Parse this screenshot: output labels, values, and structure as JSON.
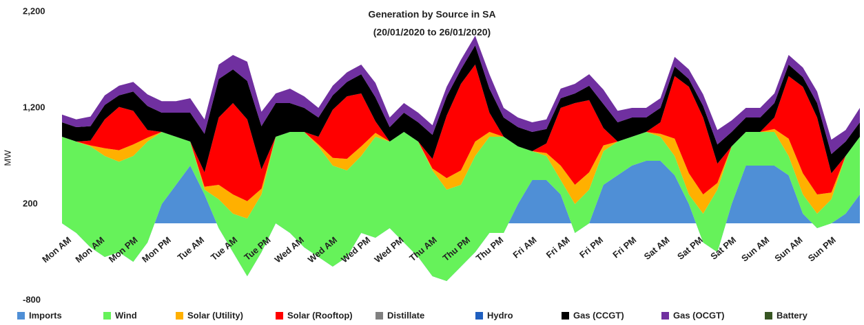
{
  "chart_data": {
    "type": "stacked_area",
    "title": "Generation by Source in SA",
    "subtitle": "(20/01/2020 to 26/01/2020)",
    "y_label": "MW",
    "x": [
      0,
      3,
      6,
      9,
      12,
      15,
      18,
      21,
      24,
      27,
      30,
      33,
      36,
      39,
      42,
      45,
      48,
      51,
      54,
      57,
      60,
      63,
      66,
      69,
      72,
      75,
      78,
      81,
      84,
      87,
      90,
      93,
      96,
      99,
      102,
      105,
      108,
      111,
      114,
      117,
      120,
      123,
      126,
      129,
      132,
      135,
      138,
      141,
      144,
      147,
      150,
      153,
      156,
      159,
      162,
      165,
      168
    ],
    "xlim": [
      0,
      168
    ],
    "xticks": [
      {
        "value": 0,
        "label": "Mon AM"
      },
      {
        "value": 7,
        "label": "Mon AM"
      },
      {
        "value": 14,
        "label": "Mon PM"
      },
      {
        "value": 21,
        "label": "Mon PM"
      },
      {
        "value": 28,
        "label": "Tue AM"
      },
      {
        "value": 35,
        "label": "Tue AM"
      },
      {
        "value": 42,
        "label": "Tue PM"
      },
      {
        "value": 49,
        "label": "Wed AM"
      },
      {
        "value": 56,
        "label": "Wed AM"
      },
      {
        "value": 63,
        "label": "Wed PM"
      },
      {
        "value": 70,
        "label": "Wed PM"
      },
      {
        "value": 77,
        "label": "Thu AM"
      },
      {
        "value": 84,
        "label": "Thu PM"
      },
      {
        "value": 91,
        "label": "Thu PM"
      },
      {
        "value": 98,
        "label": "Fri AM"
      },
      {
        "value": 105,
        "label": "Fri AM"
      },
      {
        "value": 112,
        "label": "Fri PM"
      },
      {
        "value": 119,
        "label": "Fri PM"
      },
      {
        "value": 126,
        "label": "Sat AM"
      },
      {
        "value": 133,
        "label": "Sat PM"
      },
      {
        "value": 140,
        "label": "Sat PM"
      },
      {
        "value": 147,
        "label": "Sun AM"
      },
      {
        "value": 154,
        "label": "Sun AM"
      },
      {
        "value": 161,
        "label": "Sun PM"
      }
    ],
    "ylim": [
      -800,
      2200
    ],
    "yticks": [
      {
        "value": 2200,
        "label": "2,200"
      },
      {
        "value": 1200,
        "label": "1,200"
      },
      200,
      -800
    ],
    "grid": false,
    "legend": "bottom",
    "series": [
      {
        "name": "Imports",
        "color": "#4f8fd6",
        "values": [
          0,
          -100,
          -250,
          -350,
          -300,
          -400,
          -200,
          200,
          400,
          600,
          300,
          -50,
          -300,
          -550,
          -300,
          0,
          -100,
          -250,
          -350,
          -450,
          -350,
          -100,
          -150,
          -50,
          -200,
          -350,
          -550,
          -600,
          -450,
          -300,
          -100,
          -100,
          200,
          450,
          450,
          300,
          -100,
          0,
          400,
          500,
          600,
          650,
          650,
          500,
          200,
          -200,
          -300,
          200,
          600,
          600,
          600,
          500,
          100,
          -50,
          0,
          100,
          300
        ]
      },
      {
        "name": "Wind",
        "color": "#66f25a",
        "values": [
          900,
          950,
          1050,
          1050,
          940,
          1100,
          1050,
          750,
          500,
          250,
          50,
          300,
          400,
          600,
          600,
          900,
          1050,
          1200,
          1150,
          1050,
          900,
          800,
          1050,
          900,
          1150,
          1200,
          1100,
          950,
          850,
          1000,
          1000,
          1000,
          600,
          300,
          250,
          150,
          300,
          350,
          350,
          350,
          300,
          300,
          250,
          200,
          100,
          300,
          650,
          600,
          350,
          350,
          350,
          200,
          200,
          150,
          250,
          600,
          600
        ]
      },
      {
        "name": "Solar (Utility)",
        "color": "#ffb000",
        "values": [
          0,
          0,
          10,
          80,
          120,
          120,
          40,
          0,
          0,
          0,
          30,
          150,
          200,
          180,
          60,
          0,
          0,
          0,
          20,
          80,
          120,
          100,
          40,
          0,
          0,
          0,
          20,
          120,
          150,
          150,
          50,
          0,
          0,
          0,
          30,
          150,
          200,
          180,
          60,
          0,
          0,
          0,
          30,
          180,
          220,
          200,
          70,
          0,
          0,
          0,
          30,
          180,
          220,
          200,
          70,
          0,
          0
        ]
      },
      {
        "name": "Solar (Rooftop)",
        "color": "#ff0000",
        "values": [
          0,
          0,
          50,
          300,
          450,
          350,
          80,
          0,
          0,
          0,
          150,
          700,
          950,
          850,
          200,
          0,
          0,
          0,
          80,
          500,
          650,
          550,
          120,
          0,
          0,
          0,
          100,
          650,
          900,
          800,
          200,
          0,
          0,
          0,
          100,
          600,
          850,
          750,
          180,
          0,
          0,
          0,
          120,
          650,
          900,
          800,
          200,
          0,
          0,
          0,
          120,
          650,
          900,
          800,
          200,
          0,
          0
        ]
      },
      {
        "name": "Distillate",
        "color": "#808080",
        "values": [
          0,
          0,
          0,
          0,
          0,
          0,
          0,
          0,
          0,
          0,
          0,
          0,
          0,
          0,
          0,
          0,
          0,
          0,
          0,
          0,
          0,
          0,
          0,
          0,
          0,
          0,
          0,
          0,
          0,
          0,
          0,
          0,
          0,
          0,
          0,
          0,
          0,
          0,
          0,
          0,
          0,
          0,
          0,
          0,
          0,
          0,
          0,
          0,
          0,
          0,
          0,
          0,
          0,
          0,
          0,
          0,
          0
        ]
      },
      {
        "name": "Hydro",
        "color": "#1f5fbf",
        "values": [
          0,
          0,
          0,
          0,
          0,
          0,
          0,
          0,
          0,
          0,
          0,
          0,
          0,
          0,
          0,
          0,
          0,
          0,
          0,
          0,
          0,
          0,
          0,
          0,
          0,
          0,
          0,
          0,
          0,
          0,
          0,
          0,
          0,
          0,
          0,
          0,
          0,
          0,
          0,
          0,
          0,
          0,
          0,
          0,
          0,
          0,
          0,
          0,
          0,
          0,
          0,
          0,
          0,
          0,
          0,
          0,
          0
        ]
      },
      {
        "name": "Gas (CCGT)",
        "color": "#000000",
        "values": [
          150,
          150,
          150,
          150,
          120,
          200,
          250,
          200,
          250,
          300,
          400,
          400,
          350,
          400,
          450,
          350,
          300,
          250,
          200,
          150,
          150,
          200,
          250,
          150,
          200,
          200,
          250,
          200,
          150,
          200,
          250,
          200,
          200,
          200,
          150,
          100,
          100,
          150,
          250,
          200,
          200,
          150,
          150,
          100,
          80,
          120,
          200,
          150,
          150,
          150,
          150,
          120,
          100,
          150,
          200,
          150,
          150
        ]
      },
      {
        "name": "Gas (OCGT)",
        "color": "#7030a0",
        "values": [
          80,
          80,
          100,
          100,
          100,
          100,
          120,
          120,
          120,
          150,
          150,
          150,
          150,
          200,
          150,
          100,
          150,
          120,
          100,
          100,
          100,
          100,
          150,
          100,
          100,
          100,
          100,
          100,
          100,
          100,
          150,
          100,
          100,
          100,
          100,
          100,
          100,
          120,
          150,
          120,
          100,
          100,
          100,
          100,
          100,
          120,
          150,
          120,
          100,
          100,
          100,
          100,
          100,
          120,
          150,
          120,
          150
        ]
      },
      {
        "name": "Battery",
        "color": "#375623",
        "values": [
          0,
          0,
          0,
          0,
          0,
          0,
          0,
          0,
          0,
          0,
          0,
          0,
          0,
          0,
          0,
          0,
          0,
          0,
          0,
          0,
          0,
          0,
          0,
          0,
          0,
          0,
          0,
          0,
          0,
          0,
          0,
          0,
          0,
          0,
          0,
          0,
          0,
          0,
          0,
          0,
          0,
          0,
          0,
          0,
          0,
          0,
          0,
          0,
          0,
          0,
          0,
          0,
          0,
          0,
          0,
          0,
          0
        ]
      }
    ]
  }
}
